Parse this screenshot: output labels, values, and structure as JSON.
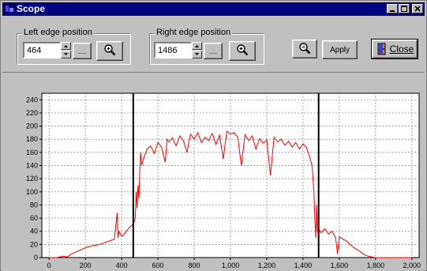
{
  "window": {
    "title": "Scope"
  },
  "left_group": {
    "label": "Left edge position",
    "value": "464",
    "browse_label": "...."
  },
  "right_group": {
    "label": "Right edge position",
    "value": "1486",
    "browse_label": "...."
  },
  "buttons": {
    "apply_label": "Apply",
    "close_label": "Close"
  },
  "colors": {
    "titlebar": "#000080",
    "trace": "#ff0000",
    "plot_bg": "#ffffff"
  },
  "chart_data": {
    "type": "line",
    "x_ticks": [
      "0",
      "200",
      "400",
      "600",
      "800",
      "1,000",
      "1,200",
      "1,400",
      "1,600",
      "1,800",
      "2,000"
    ],
    "y_ticks": [
      "0",
      "20",
      "40",
      "60",
      "80",
      "100",
      "120",
      "140",
      "160",
      "180",
      "200",
      "220",
      "240"
    ],
    "xlim": [
      -40,
      2040
    ],
    "ylim": [
      0,
      250
    ],
    "grid": true,
    "cursors": [
      464,
      1486
    ],
    "series": [
      {
        "x": [
          0,
          40,
          80,
          100,
          120,
          160,
          200,
          240,
          280,
          320,
          360,
          375,
          380,
          385,
          395,
          400,
          420,
          440,
          460,
          470,
          475,
          480,
          485,
          490,
          495,
          500,
          505,
          510,
          520,
          540,
          560,
          580,
          600,
          620,
          640,
          650,
          660,
          680,
          700,
          720,
          740,
          760,
          780,
          800,
          820,
          840,
          860,
          880,
          900,
          920,
          940,
          960,
          980,
          1000,
          1020,
          1040,
          1060,
          1080,
          1100,
          1120,
          1140,
          1160,
          1180,
          1200,
          1220,
          1240,
          1260,
          1280,
          1300,
          1320,
          1340,
          1360,
          1380,
          1400,
          1420,
          1440,
          1450,
          1460,
          1465,
          1470,
          1475,
          1480,
          1486,
          1490,
          1500,
          1520,
          1540,
          1560,
          1580,
          1590,
          1600,
          1620,
          1640,
          1660,
          1680,
          1700,
          1720,
          1740,
          1760,
          1780,
          1800,
          1820,
          1840,
          1860,
          1880,
          1900,
          1950,
          2000
        ],
        "y": [
          0,
          0,
          2,
          1,
          5,
          10,
          15,
          18,
          20,
          24,
          28,
          68,
          30,
          40,
          35,
          32,
          38,
          45,
          50,
          55,
          60,
          100,
          75,
          110,
          90,
          130,
          160,
          140,
          150,
          165,
          170,
          158,
          175,
          168,
          145,
          180,
          176,
          182,
          170,
          185,
          178,
          160,
          188,
          180,
          190,
          175,
          183,
          178,
          189,
          172,
          186,
          150,
          192,
          188,
          190,
          183,
          140,
          187,
          178,
          185,
          165,
          181,
          174,
          179,
          125,
          183,
          176,
          180,
          171,
          177,
          168,
          175,
          165,
          173,
          167,
          150,
          140,
          100,
          60,
          30,
          80,
          40,
          35,
          42,
          38,
          44,
          36,
          40,
          30,
          5,
          32,
          28,
          25,
          20,
          15,
          12,
          8,
          4,
          2,
          1,
          0,
          0,
          0,
          0,
          0,
          0,
          0,
          0
        ]
      }
    ]
  }
}
